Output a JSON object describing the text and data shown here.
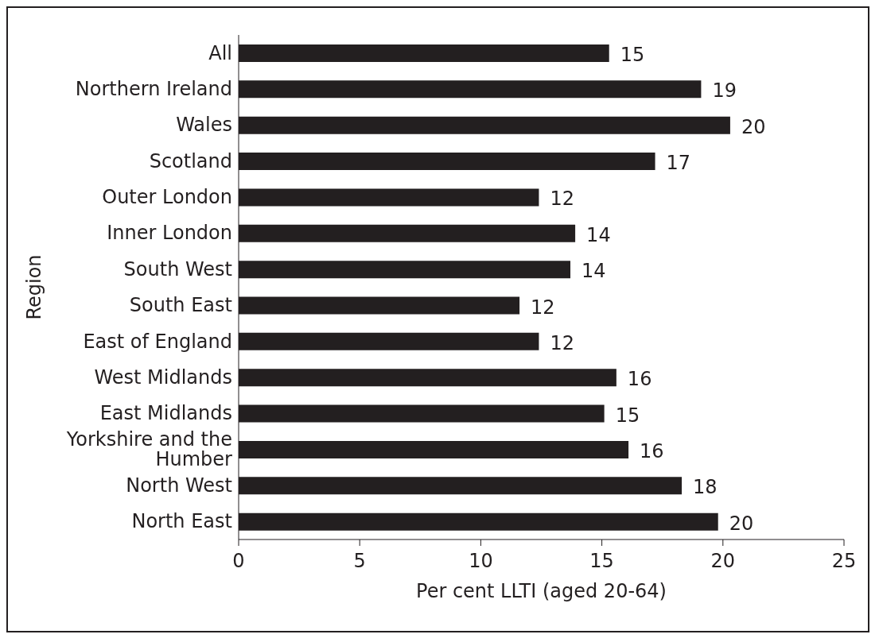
{
  "chart_data": {
    "type": "bar",
    "orientation": "horizontal",
    "xlabel": "Per cent LLTI (aged 20-64)",
    "ylabel": "Region",
    "categories": [
      "All",
      "Northern Ireland",
      "Wales",
      "Scotland",
      "Outer London",
      "Inner London",
      "South West",
      "South East",
      "East of England",
      "West Midlands",
      "East Midlands",
      "Yorkshire and the Humber",
      "North West",
      "North East"
    ],
    "values": [
      15.3,
      19.1,
      20.3,
      17.2,
      12.4,
      13.9,
      13.7,
      11.6,
      12.4,
      15.6,
      15.1,
      16.1,
      18.3,
      19.8
    ],
    "value_labels": [
      "15",
      "19",
      "20",
      "17",
      "12",
      "14",
      "14",
      "12",
      "12",
      "16",
      "15",
      "16",
      "18",
      "20"
    ],
    "color": "#231f20",
    "xlim": [
      0,
      25
    ],
    "xticks": [
      0,
      5,
      10,
      15,
      20,
      25
    ],
    "grid": false,
    "legend": false
  }
}
